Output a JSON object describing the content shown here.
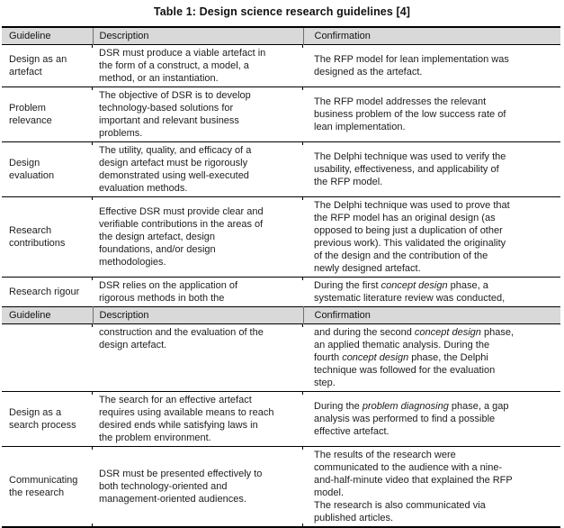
{
  "title": "Table 1: Design science research guidelines [4]",
  "colors": {
    "header_background": "#d9d9d9",
    "border": "#000000",
    "text": "#1c1c1c",
    "page_background": "#ffffff"
  },
  "table": {
    "columns": [
      "Guideline",
      "Description",
      "Confirmation"
    ],
    "note": "header row repeats mid-table (page break); *text* denotes italics",
    "rows": [
      {
        "guideline": "Design as an\nartefact",
        "description": "DSR must produce a viable artefact in\nthe form of a construct, a model, a\nmethod, or an instantiation.",
        "confirmation": "The RFP model for lean implementation was\ndesigned as the artefact."
      },
      {
        "guideline": "Problem\nrelevance",
        "description": "The objective of DSR is to develop\ntechnology-based solutions for\nimportant and relevant business\nproblems.",
        "confirmation": "The RFP model addresses the relevant\nbusiness problem of the low success rate of\nlean implementation."
      },
      {
        "guideline": "Design\nevaluation",
        "description": "The utility, quality, and efficacy of a\ndesign artefact must be rigorously\ndemonstrated using well-executed\nevaluation methods.",
        "confirmation": "The Delphi technique was used to verify the\nusability, effectiveness, and applicability of\nthe RFP model."
      },
      {
        "guideline": "Research\ncontributions",
        "description": "Effective DSR must provide clear and\nverifiable contributions in the areas of\nthe design artefact, design\nfoundations, and/or design\nmethodologies.",
        "confirmation": "The Delphi technique was used to prove that\nthe RFP model has an original design (as\nopposed to being just a duplication of other\nprevious work). This validated the originality\nof the design and the contribution of the\nnewly designed artefact."
      },
      {
        "guideline": "Research rigour",
        "description": "DSR relies on the application of\nrigorous methods in both the",
        "confirmation": "During the first *concept design* phase, a\nsystematic literature review was conducted,"
      },
      {
        "guideline": "",
        "description": "construction and the evaluation of the\ndesign artefact.",
        "confirmation": "and during the second *concept design* phase,\nan applied thematic analysis. During the\nfourth *concept design* phase, the Delphi\ntechnique was followed for the evaluation\nstep."
      },
      {
        "guideline": "Design as a\nsearch process",
        "description": "The search for an effective artefact\nrequires using available means to reach\ndesired ends while satisfying laws in\nthe problem environment.",
        "confirmation": "During the *problem diagnosing* phase, a gap\nanalysis was performed to find a possible\neffective artefact."
      },
      {
        "guideline": "Communicating\nthe research",
        "description": "DSR must be presented effectively to\nboth technology-oriented and\nmanagement-oriented audiences.",
        "confirmation": "The results of the research were\ncommunicated to the audience with a nine-\nand-half-minute video that explained the RFP\nmodel.\nThe research is also communicated via\npublished articles."
      }
    ]
  }
}
